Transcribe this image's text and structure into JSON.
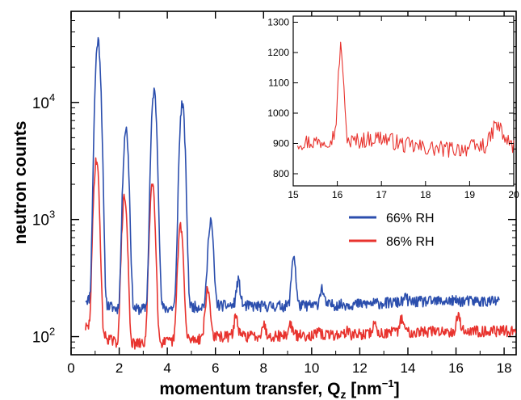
{
  "chart_data": [
    {
      "type": "line",
      "xlabel": "momentum transfer, Q",
      "xlabel_sub": "z",
      "xlabel_unit": " [nm",
      "xlabel_unit_exp": "−1",
      "xlabel_unit_end": "]",
      "ylabel": "neutron counts",
      "x_scale": "linear",
      "y_scale": "log",
      "xlim": [
        0,
        18.5
      ],
      "ylim": [
        70,
        60000
      ],
      "x_ticks": [
        "0",
        "2",
        "4",
        "6",
        "8",
        "10",
        "12",
        "14",
        "16",
        "18"
      ],
      "y_tick_labels": [
        {
          "base": "10",
          "exp": "2",
          "value": 100
        },
        {
          "base": "10",
          "exp": "3",
          "value": 1000
        },
        {
          "base": "10",
          "exp": "4",
          "value": 10000
        }
      ],
      "legend_position": "right-middle",
      "series": [
        {
          "name": "66% RH",
          "color": "#2B4EAD",
          "x_start": 0.6,
          "x_end": 17.8,
          "baseline": [
            [
              0.6,
              210
            ],
            [
              2,
              170
            ],
            [
              4,
              175
            ],
            [
              6,
              185
            ],
            [
              8,
              182
            ],
            [
              10,
              185
            ],
            [
              12,
              190
            ],
            [
              14,
              198
            ],
            [
              16,
              202
            ],
            [
              17.8,
              200
            ]
          ],
          "peaks": [
            {
              "x": 1.12,
              "y": 34000
            },
            {
              "x": 2.28,
              "y": 6000
            },
            {
              "x": 3.45,
              "y": 12500
            },
            {
              "x": 4.62,
              "y": 9800
            },
            {
              "x": 5.8,
              "y": 1000
            },
            {
              "x": 6.95,
              "y": 300
            },
            {
              "x": 9.25,
              "y": 500
            },
            {
              "x": 10.42,
              "y": 260
            },
            {
              "x": 13.9,
              "y": 215
            }
          ]
        },
        {
          "name": "86% RH",
          "color": "#E8332E",
          "x_start": 0.6,
          "x_end": 18.5,
          "baseline": [
            [
              0.6,
              120
            ],
            [
              2,
              85
            ],
            [
              4,
              90
            ],
            [
              6,
              100
            ],
            [
              8,
              102
            ],
            [
              10,
              103
            ],
            [
              12,
              105
            ],
            [
              14,
              110
            ],
            [
              16,
              112
            ],
            [
              18.5,
              112
            ]
          ],
          "peaks": [
            {
              "x": 1.05,
              "y": 3300
            },
            {
              "x": 2.22,
              "y": 1550
            },
            {
              "x": 3.38,
              "y": 2050
            },
            {
              "x": 4.55,
              "y": 900
            },
            {
              "x": 5.68,
              "y": 250
            },
            {
              "x": 6.85,
              "y": 150
            },
            {
              "x": 8.0,
              "y": 128
            },
            {
              "x": 9.12,
              "y": 128
            },
            {
              "x": 10.3,
              "y": 108
            },
            {
              "x": 11.45,
              "y": 112
            },
            {
              "x": 12.6,
              "y": 128
            },
            {
              "x": 13.75,
              "y": 145
            },
            {
              "x": 16.1,
              "y": 152
            }
          ]
        }
      ]
    },
    {
      "type": "line",
      "title": "",
      "xlabel": "",
      "ylabel": "",
      "xlim": [
        15,
        20
      ],
      "ylim": [
        760,
        1320
      ],
      "x_ticks": [
        "15",
        "16",
        "17",
        "18",
        "19",
        "20"
      ],
      "y_ticks": [
        "800",
        "900",
        "1000",
        "1100",
        "1200",
        "1300"
      ],
      "series": [
        {
          "color": "#E8332E",
          "baseline": [
            [
              15.1,
              905
            ],
            [
              15.6,
              905
            ],
            [
              15.9,
              920
            ],
            [
              16.3,
              905
            ],
            [
              17,
              920
            ],
            [
              17.5,
              895
            ],
            [
              18,
              885
            ],
            [
              18.5,
              880
            ],
            [
              19,
              885
            ],
            [
              19.4,
              895
            ],
            [
              19.6,
              950
            ],
            [
              19.75,
              920
            ],
            [
              20,
              890
            ]
          ],
          "peaks": [
            {
              "x": 16.08,
              "y": 1220
            },
            {
              "x": 19.62,
              "y": 960
            }
          ]
        }
      ]
    }
  ]
}
